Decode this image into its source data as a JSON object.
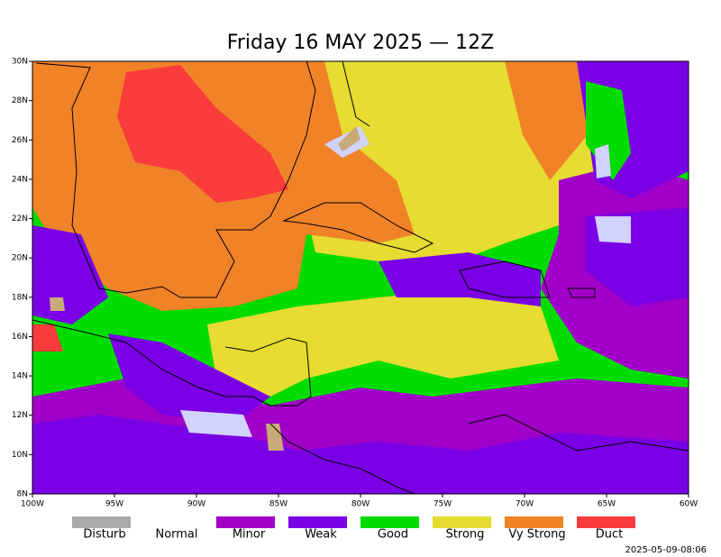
{
  "title": "Friday 16 MAY 2025 — 12Z",
  "latitude_labels": [
    "30N",
    "28N",
    "26N",
    "24N",
    "22N",
    "20N",
    "18N",
    "16N",
    "14N",
    "12N",
    "10N",
    "8N"
  ],
  "longitude_labels": [
    "100W",
    "95W",
    "90W",
    "85W",
    "80W",
    "75W",
    "70W",
    "65W",
    "60W"
  ],
  "legend": [
    {
      "label": "Disturb",
      "color": "#aaaaaa"
    },
    {
      "label": "Normal"
    },
    {
      "label": "Minor",
      "color": "#a000c8"
    },
    {
      "label": "Weak",
      "color": "#7a00e6"
    },
    {
      "label": "Good",
      "color": "#00dc00"
    },
    {
      "label": "Strong",
      "color": "#e6dc32"
    },
    {
      "label": "Vy Strong",
      "color": "#f08228"
    },
    {
      "label": "Duct",
      "color": "#fa3c3c"
    }
  ],
  "timestamp": "2025-05-09-08:06"
}
